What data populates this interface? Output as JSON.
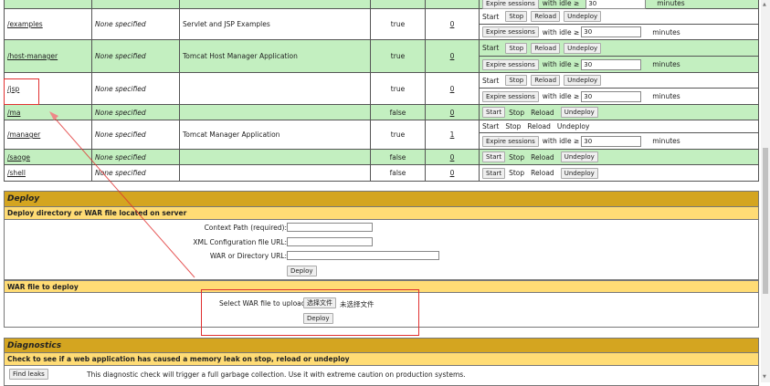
{
  "apps": [
    {
      "path": "/examples",
      "version": "None specified",
      "display_name": "Servlet and JSP Examples",
      "running": "true",
      "sessions": "0",
      "stopped": false
    },
    {
      "path": "/host-manager",
      "version": "None specified",
      "display_name": "Tomcat Host Manager Application",
      "running": "true",
      "sessions": "0",
      "stopped": false
    },
    {
      "path": "/jsp",
      "version": "None specified",
      "display_name": "",
      "running": "true",
      "sessions": "0",
      "stopped": false
    },
    {
      "path": "/ma",
      "version": "None specified",
      "display_name": "",
      "running": "false",
      "sessions": "0",
      "stopped": true
    },
    {
      "path": "/manager",
      "version": "None specified",
      "display_name": "Tomcat Manager Application",
      "running": "true",
      "sessions": "1",
      "stopped": false,
      "self": true
    },
    {
      "path": "/saoge",
      "version": "None specified",
      "display_name": "",
      "running": "false",
      "sessions": "0",
      "stopped": true
    },
    {
      "path": "/shell",
      "version": "None specified",
      "display_name": "",
      "running": "false",
      "sessions": "0",
      "stopped": true
    }
  ],
  "commands": {
    "start": "Start",
    "stop": "Stop",
    "reload": "Reload",
    "undeploy": "Undeploy",
    "expire": "Expire sessions",
    "with_idle": "with idle ≥",
    "idle_value": "30",
    "minutes": "minutes"
  },
  "deploy": {
    "title": "Deploy",
    "server_subtitle": "Deploy directory or WAR file located on server",
    "context_path_label": "Context Path (required):",
    "xml_config_label": "XML Configuration file URL:",
    "war_dir_label": "WAR or Directory URL:",
    "deploy_button": "Deploy",
    "war_subtitle": "WAR file to deploy",
    "select_war_label": "Select WAR file to upload",
    "choose_file_button": "选择文件",
    "no_file_text": "未选择文件",
    "upload_deploy_button": "Deploy"
  },
  "diagnostics": {
    "title": "Diagnostics",
    "subtitle": "Check to see if a web application has caused a memory leak on stop, reload or undeploy",
    "find_leaks_button": "Find leaks",
    "description": "This diagnostic check will trigger a full garbage collection. Use it with extreme caution on production systems."
  },
  "colors": {
    "row_green": "#c3efc0",
    "header_gold": "#d4a520",
    "subheader_yellow": "#ffdc75",
    "annotation_red": "#e03030"
  }
}
